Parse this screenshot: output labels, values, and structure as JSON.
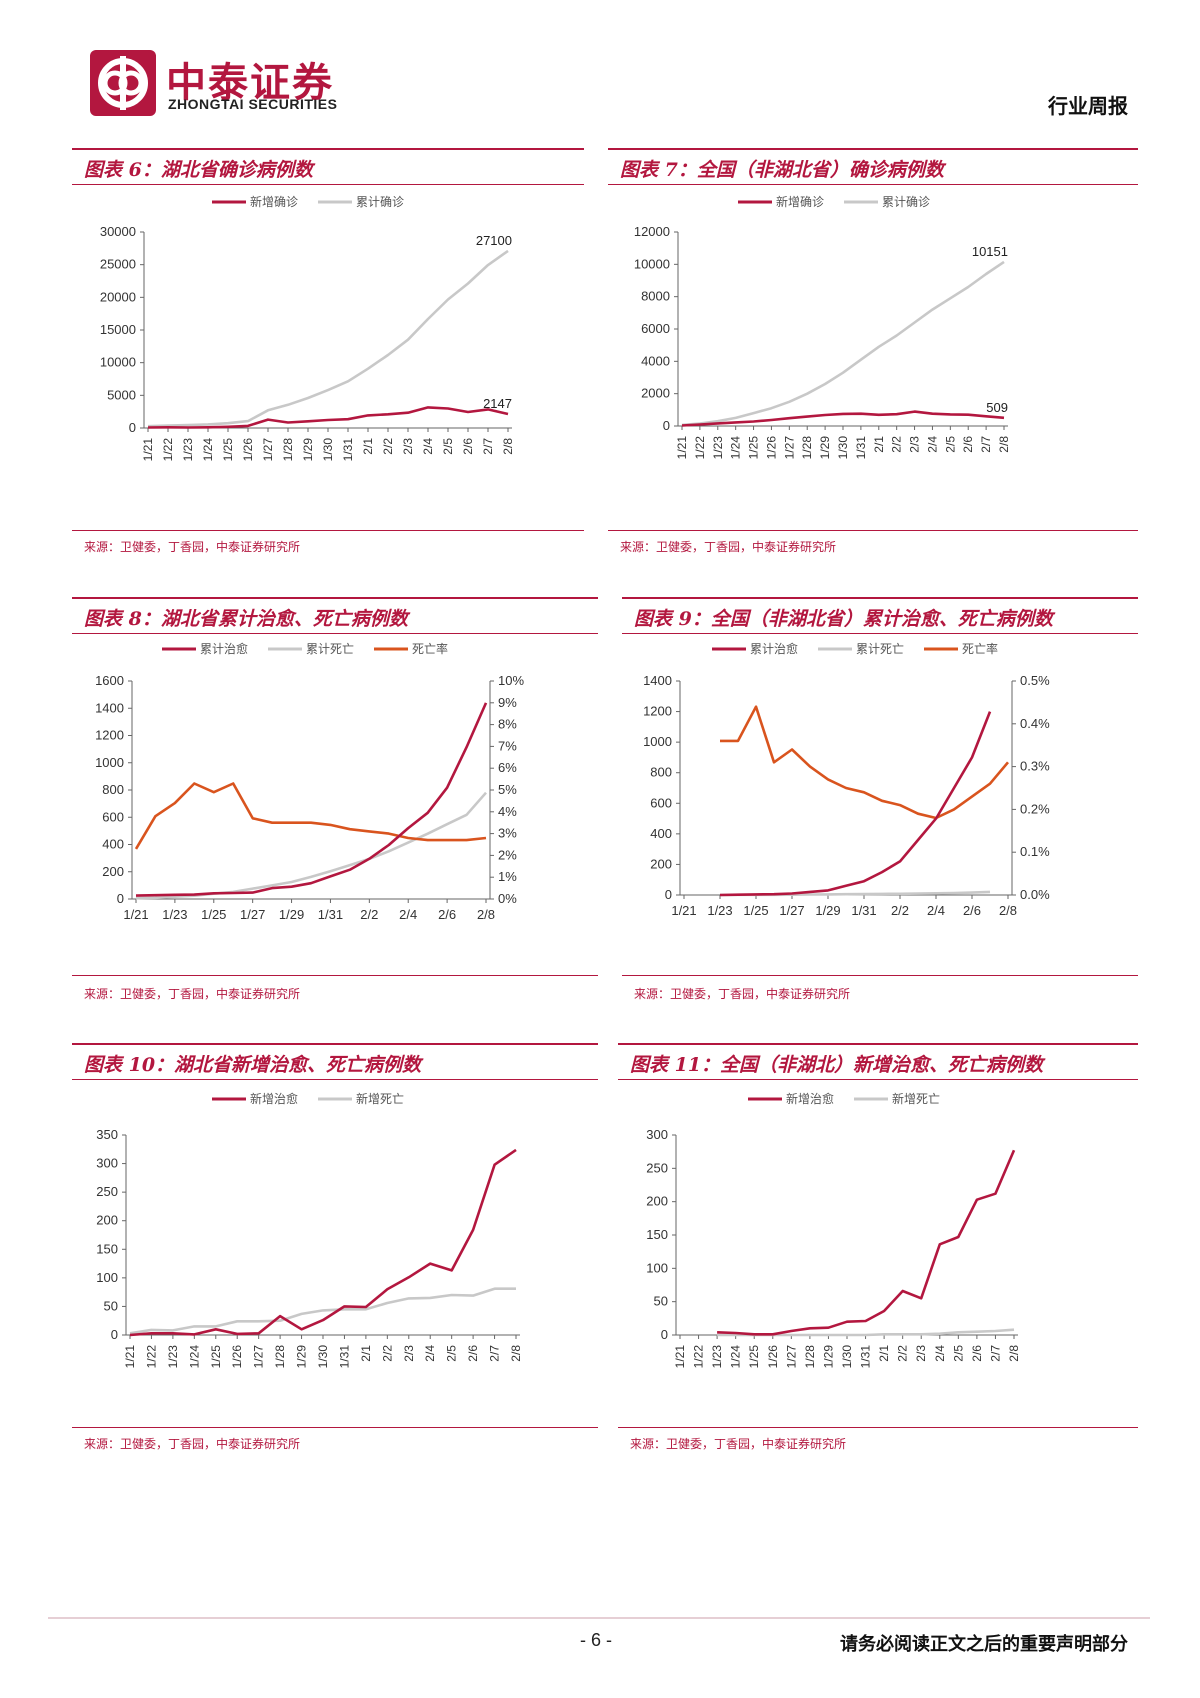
{
  "header": {
    "brand_cn": "中泰证券",
    "brand_en": "ZHONGTAI SECURITIES",
    "report_type": "行业周报"
  },
  "colors": {
    "accent": "#b3173f",
    "gray": "#c8c8c8",
    "orange": "#d9541e"
  },
  "footer": {
    "page_number": "- 6 -",
    "disclaimer": "请务必阅读正文之后的重要声明部分"
  },
  "panels": [
    {
      "title": "图表 6：湖北省确诊病例数",
      "source": "来源：卫健委，丁香园，中泰证券研究所",
      "chart_data": {
        "type": "line",
        "categories": [
          "1/21",
          "1/22",
          "1/23",
          "1/24",
          "1/25",
          "1/26",
          "1/27",
          "1/28",
          "1/29",
          "1/30",
          "1/31",
          "2/1",
          "2/2",
          "2/3",
          "2/4",
          "2/5",
          "2/6",
          "2/7",
          "2/8"
        ],
        "series": [
          {
            "name": "新增确诊",
            "color": "#b3173f",
            "values": [
              72,
              105,
              69,
              105,
              180,
              323,
              1291,
              840,
              1032,
              1220,
              1347,
              1921,
              2103,
              2345,
              3156,
              2987,
              2447,
              2841,
              2147
            ]
          },
          {
            "name": "累计确诊",
            "color": "#c8c8c8",
            "values": [
              270,
              375,
              444,
              549,
              729,
              1052,
              2714,
              3554,
              4586,
              5806,
              7153,
              9074,
              11177,
              13522,
              16678,
              19665,
              22112,
              24953,
              27100
            ]
          }
        ],
        "ylim": [
          0,
          30000
        ],
        "yticks": [
          "0",
          "5000",
          "10000",
          "15000",
          "20000",
          "25000",
          "30000"
        ],
        "annotations": [
          "27100",
          "2147"
        ]
      }
    },
    {
      "title": "图表 7：全国（非湖北省）确诊病例数",
      "source": "来源：卫健委，丁香园，中泰证券研究所",
      "chart_data": {
        "type": "line",
        "categories": [
          "1/21",
          "1/22",
          "1/23",
          "1/24",
          "1/25",
          "1/26",
          "1/27",
          "1/28",
          "1/29",
          "1/30",
          "1/31",
          "2/1",
          "2/2",
          "2/3",
          "2/4",
          "2/5",
          "2/6",
          "2/7",
          "2/8"
        ],
        "series": [
          {
            "name": "新增确诊",
            "color": "#b3173f",
            "values": [
              31,
              90,
              160,
              220,
              280,
              370,
              480,
              580,
              680,
              750,
              760,
              690,
              730,
              890,
              760,
              720,
              700,
              600,
              509
            ]
          },
          {
            "name": "累计确诊",
            "color": "#c8c8c8",
            "values": [
              70,
              150,
              300,
              500,
              800,
              1100,
              1500,
              2000,
              2600,
              3300,
              4100,
              4900,
              5600,
              6400,
              7200,
              7900,
              8600,
              9400,
              10151
            ]
          }
        ],
        "ylim": [
          0,
          12000
        ],
        "yticks": [
          "0",
          "2000",
          "4000",
          "6000",
          "8000",
          "10000",
          "12000"
        ],
        "annotations": [
          "10151",
          "509"
        ]
      }
    },
    {
      "title": "图表 8：湖北省累计治愈、死亡病例数",
      "source": "来源：卫健委，丁香园，中泰证券研究所",
      "chart_data": {
        "type": "line",
        "categories": [
          "1/21",
          "1/22",
          "1/23",
          "1/24",
          "1/25",
          "1/26",
          "1/27",
          "1/28",
          "1/29",
          "1/30",
          "1/31",
          "2/1",
          "2/2",
          "2/3",
          "2/4",
          "2/5",
          "2/6",
          "2/7",
          "2/8"
        ],
        "xticks": [
          "1/21",
          "1/23",
          "1/25",
          "1/27",
          "1/29",
          "1/31",
          "2/2",
          "2/4",
          "2/6",
          "2/8"
        ],
        "series": [
          {
            "name": "累计治愈",
            "color": "#b3173f",
            "axis": "left",
            "values": [
              25,
              28,
              31,
              32,
              42,
              44,
              47,
              80,
              90,
              116,
              166,
              215,
              295,
              396,
              520,
              633,
              817,
              1115,
              1439
            ]
          },
          {
            "name": "累计死亡",
            "color": "#c8c8c8",
            "axis": "left",
            "values": [
              6,
              9,
              17,
              24,
              39,
              52,
              76,
              100,
              125,
              162,
              204,
              249,
              294,
              350,
              414,
              479,
              549,
              618,
              780
            ]
          },
          {
            "name": "死亡率",
            "color": "#d9541e",
            "axis": "right",
            "values": [
              2.3,
              3.8,
              4.4,
              5.3,
              4.9,
              5.3,
              3.7,
              3.5,
              3.5,
              3.5,
              3.4,
              3.2,
              3.1,
              3.0,
              2.8,
              2.7,
              2.7,
              2.7,
              2.8
            ]
          }
        ],
        "ylim": [
          0,
          1600
        ],
        "yticks": [
          "0",
          "200",
          "400",
          "600",
          "800",
          "1000",
          "1200",
          "1400",
          "1600"
        ],
        "y2lim": [
          0,
          10
        ],
        "y2ticks": [
          "0%",
          "1%",
          "2%",
          "3%",
          "4%",
          "5%",
          "6%",
          "7%",
          "8%",
          "9%",
          "10%"
        ]
      }
    },
    {
      "title": "图表 9：全国（非湖北省）累计治愈、死亡病例数",
      "source": "来源：卫健委，丁香园，中泰证券研究所",
      "chart_data": {
        "type": "line",
        "categories": [
          "1/21",
          "1/22",
          "1/23",
          "1/24",
          "1/25",
          "1/26",
          "1/27",
          "1/28",
          "1/29",
          "1/30",
          "1/31",
          "2/1",
          "2/2",
          "2/3",
          "2/4",
          "2/5",
          "2/6",
          "2/7",
          "2/8"
        ],
        "xticks": [
          "1/21",
          "1/23",
          "1/25",
          "1/27",
          "1/29",
          "1/31",
          "2/2",
          "2/4",
          "2/6",
          "2/8"
        ],
        "series": [
          {
            "name": "累计治愈",
            "color": "#b3173f",
            "axis": "left",
            "values": [
              null,
              null,
              0,
              2,
              4,
              5,
              10,
              20,
              30,
              60,
              90,
              150,
              220,
              360,
              500,
              700,
              900,
              1200,
              null
            ]
          },
          {
            "name": "累计死亡",
            "color": "#c8c8c8",
            "axis": "left",
            "values": [
              null,
              null,
              0,
              1,
              1,
              1,
              2,
              3,
              4,
              5,
              6,
              7,
              8,
              9,
              11,
              13,
              16,
              20,
              null
            ]
          },
          {
            "name": "死亡率",
            "color": "#d9541e",
            "axis": "right",
            "values": [
              null,
              null,
              0.36,
              0.36,
              0.44,
              0.31,
              0.34,
              0.3,
              0.27,
              0.25,
              0.24,
              0.22,
              0.21,
              0.19,
              0.18,
              0.2,
              0.23,
              0.26,
              0.31
            ]
          }
        ],
        "ylim": [
          0,
          1400
        ],
        "yticks": [
          "0",
          "200",
          "400",
          "600",
          "800",
          "1000",
          "1200",
          "1400"
        ],
        "y2lim": [
          0,
          0.5
        ],
        "y2ticks": [
          "0.0%",
          "0.1%",
          "0.2%",
          "0.3%",
          "0.4%",
          "0.5%"
        ]
      }
    },
    {
      "title": "图表 10：湖北省新增治愈、死亡病例数",
      "source": "来源：卫健委，丁香园，中泰证券研究所",
      "chart_data": {
        "type": "line",
        "categories": [
          "1/21",
          "1/22",
          "1/23",
          "1/24",
          "1/25",
          "1/26",
          "1/27",
          "1/28",
          "1/29",
          "1/30",
          "1/31",
          "2/1",
          "2/2",
          "2/3",
          "2/4",
          "2/5",
          "2/6",
          "2/7",
          "2/8"
        ],
        "series": [
          {
            "name": "新增治愈",
            "color": "#b3173f",
            "values": [
              0,
              3,
              3,
              1,
              10,
              2,
              3,
              33,
              10,
              26,
              50,
              49,
              80,
              101,
              125,
              113,
              184,
              298,
              324
            ]
          },
          {
            "name": "新增死亡",
            "color": "#c8c8c8",
            "values": [
              3,
              9,
              8,
              15,
              15,
              24,
              24,
              25,
              37,
              43,
              45,
              45,
              56,
              64,
              65,
              70,
              69,
              81,
              81
            ]
          }
        ],
        "ylim": [
          0,
          350
        ],
        "yticks": [
          "0",
          "50",
          "100",
          "150",
          "200",
          "250",
          "300",
          "350"
        ]
      }
    },
    {
      "title": "图表 11：全国（非湖北）新增治愈、死亡病例数",
      "source": "来源：卫健委，丁香园，中泰证券研究所",
      "chart_data": {
        "type": "line",
        "categories": [
          "1/21",
          "1/22",
          "1/23",
          "1/24",
          "1/25",
          "1/26",
          "1/27",
          "1/28",
          "1/29",
          "1/30",
          "1/31",
          "2/1",
          "2/2",
          "2/3",
          "2/4",
          "2/5",
          "2/6",
          "2/7",
          "2/8"
        ],
        "series": [
          {
            "name": "新增治愈",
            "color": "#b3173f",
            "values": [
              null,
              null,
              4,
              3,
              1,
              1,
              6,
              10,
              11,
              20,
              21,
              36,
              66,
              55,
              136,
              147,
              203,
              212,
              277
            ]
          },
          {
            "name": "新增死亡",
            "color": "#c8c8c8",
            "values": [
              null,
              null,
              0,
              0,
              0,
              0,
              0,
              0,
              0,
              0,
              0,
              1,
              1,
              1,
              2,
              4,
              5,
              6,
              8
            ]
          }
        ],
        "ylim": [
          0,
          300
        ],
        "yticks": [
          "0",
          "50",
          "100",
          "150",
          "200",
          "250",
          "300"
        ]
      }
    }
  ]
}
